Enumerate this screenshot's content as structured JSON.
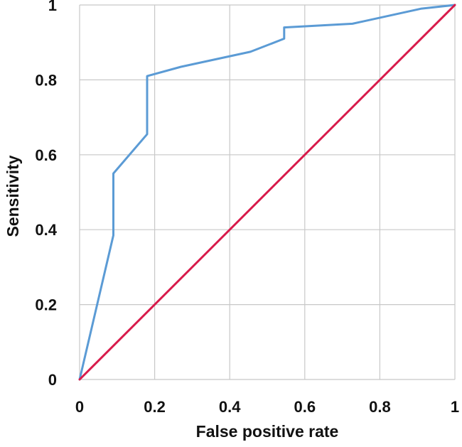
{
  "chart_data": {
    "type": "line",
    "xlabel": "False positive rate",
    "ylabel": "Sensitivity",
    "xlim": [
      0,
      1
    ],
    "ylim": [
      0,
      1
    ],
    "grid": true,
    "x_ticks": [
      "0",
      "0.2",
      "0.4",
      "0.6",
      "0.8",
      "1"
    ],
    "y_ticks": [
      "0",
      "0.2",
      "0.4",
      "0.6",
      "0.8",
      "1"
    ],
    "series": [
      {
        "color": "#5b9bd5",
        "x": [
          0,
          0.09,
          0.09,
          0.18,
          0.18,
          0.27,
          0.455,
          0.545,
          0.545,
          0.727,
          0.909,
          1
        ],
        "y": [
          0,
          0.385,
          0.55,
          0.655,
          0.81,
          0.835,
          0.875,
          0.91,
          0.94,
          0.95,
          0.99,
          1
        ]
      },
      {
        "color": "#d81b4b",
        "x": [
          0,
          1
        ],
        "y": [
          0,
          1
        ]
      }
    ]
  }
}
